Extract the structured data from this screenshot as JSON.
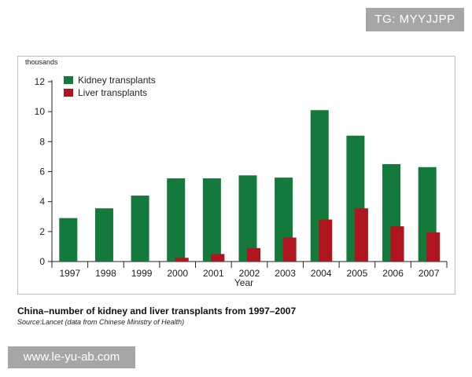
{
  "watermark_top": "TG: MYYJJPP",
  "watermark_bottom": "www.le-yu-ab.com",
  "caption": {
    "title": "China–number of kidney and liver transplants from 1997–2007",
    "source": "Source:Lancet (data from Chinese Ministry of Health)"
  },
  "colors": {
    "kidney": "#137a3c",
    "liver": "#b0141e",
    "axis": "#222222"
  },
  "chart_data": {
    "type": "bar",
    "title": "",
    "unit_label": "thousands",
    "xlabel": "Year",
    "ylabel": "thousands",
    "ylim": [
      0,
      12
    ],
    "yticks": [
      0,
      2,
      4,
      6,
      8,
      10,
      12
    ],
    "categories": [
      "1997",
      "1998",
      "1999",
      "2000",
      "2001",
      "2002",
      "2003",
      "2004",
      "2005",
      "2006",
      "2007"
    ],
    "series": [
      {
        "name": "Kidney transplants",
        "values": [
          2.9,
          3.55,
          4.4,
          5.55,
          5.55,
          5.75,
          5.6,
          10.1,
          8.4,
          6.5,
          6.3
        ]
      },
      {
        "name": "Liver transplants",
        "values": [
          0,
          0,
          0,
          0.25,
          0.5,
          0.9,
          1.6,
          2.8,
          3.55,
          2.35,
          1.95
        ]
      }
    ],
    "legend_position": "top-left",
    "grid": false
  }
}
